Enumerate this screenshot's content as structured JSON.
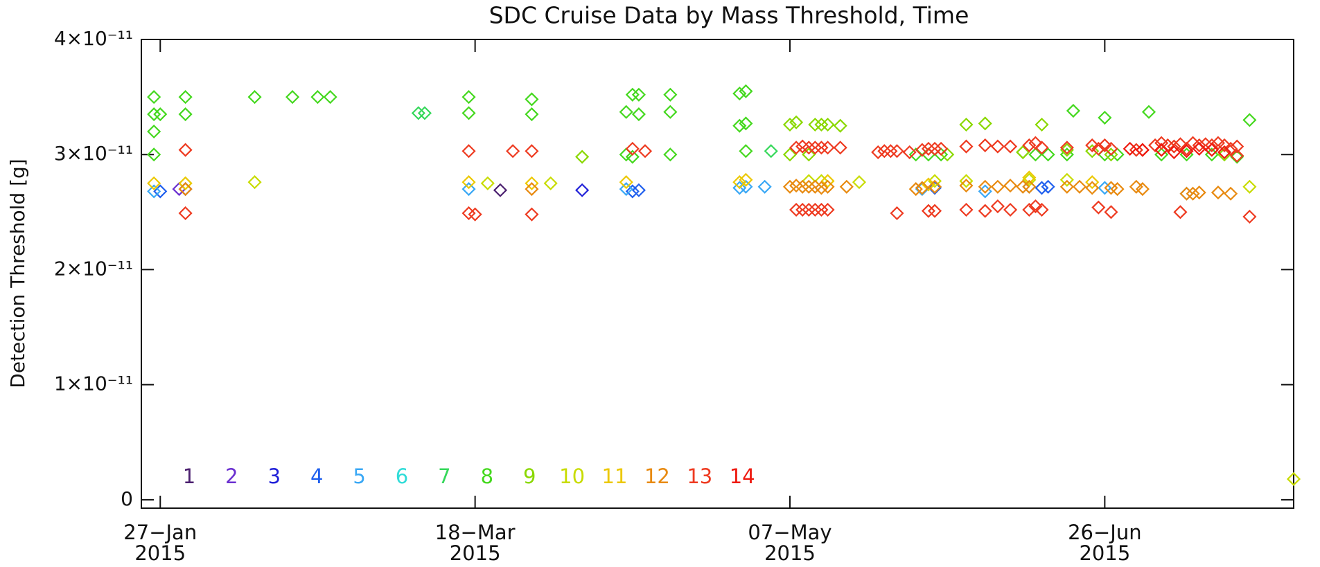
{
  "chart_data": {
    "type": "scatter",
    "title": "SDC Cruise Data by Mass Threshold, Time",
    "ylabel": "Detection Threshold [g]",
    "xlim": [
      "2015-01-24",
      "2015-07-26"
    ],
    "xticks": [
      {
        "value": "2015-01-27",
        "label": "27−Jan\n2015"
      },
      {
        "value": "2015-03-18",
        "label": "18−Mar\n2015"
      },
      {
        "value": "2015-05-07",
        "label": "07−May\n2015"
      },
      {
        "value": "2015-06-26",
        "label": "26−Jun\n2015"
      }
    ],
    "ylim": [
      -7.3e-13,
      4e-11
    ],
    "yticks": [
      0,
      {
        "value": 1e-11,
        "label": "1×10⁻¹¹"
      },
      {
        "value": 2e-11,
        "label": "2×10⁻¹¹"
      },
      {
        "value": 3e-11,
        "label": "3×10⁻¹¹"
      },
      {
        "value": 4e-11,
        "label": "4×10⁻¹¹"
      }
    ],
    "marker": "diamond",
    "series": [
      {
        "name": "1",
        "color": "#4b1f6f",
        "x": [
          "2015-03-22"
        ],
        "values": [
          2.69e-11
        ]
      },
      {
        "name": "2",
        "color": "#6a2fd0",
        "x": [
          "2015-01-30"
        ],
        "values": [
          2.7e-11
        ]
      },
      {
        "name": "3",
        "color": "#2020d8",
        "x": [
          "2015-01-31",
          "2015-04-04"
        ],
        "values": [
          2.7e-11,
          2.69e-11
        ]
      },
      {
        "name": "4",
        "color": "#1f5fee",
        "x": [
          "2015-01-27",
          "2015-04-12",
          "2015-04-13",
          "2015-05-30",
          "2015-06-16",
          "2015-06-17"
        ],
        "values": [
          2.68e-11,
          2.68e-11,
          2.69e-11,
          2.71e-11,
          2.71e-11,
          2.72e-11
        ]
      },
      {
        "name": "5",
        "color": "#3aa8f5",
        "x": [
          "2015-01-26",
          "2015-03-17",
          "2015-04-11",
          "2015-04-29",
          "2015-04-30",
          "2015-05-03",
          "2015-05-28",
          "2015-06-07",
          "2015-06-14",
          "2015-06-26",
          "2015-07-09"
        ],
        "values": [
          2.68e-11,
          2.7e-11,
          2.7e-11,
          2.71e-11,
          2.72e-11,
          2.72e-11,
          2.7e-11,
          2.68e-11,
          2.72e-11,
          2.71e-11,
          2.66e-11
        ]
      },
      {
        "name": "6",
        "color": "#30dcd8",
        "x": [],
        "values": []
      },
      {
        "name": "7",
        "color": "#35d85a",
        "x": [
          "2015-03-09",
          "2015-03-10",
          "2015-05-04"
        ],
        "values": [
          3.36e-11,
          3.36e-11,
          3.03e-11
        ]
      },
      {
        "name": "8",
        "color": "#44d81e",
        "x": [
          "2015-01-26",
          "2015-01-26",
          "2015-01-26",
          "2015-01-26",
          "2015-01-27",
          "2015-01-31",
          "2015-01-31",
          "2015-02-11",
          "2015-02-17",
          "2015-02-21",
          "2015-02-23",
          "2015-03-17",
          "2015-03-17",
          "2015-03-27",
          "2015-03-27",
          "2015-04-11",
          "2015-04-11",
          "2015-04-12",
          "2015-04-12",
          "2015-04-13",
          "2015-04-13",
          "2015-04-18",
          "2015-04-18",
          "2015-04-18",
          "2015-04-29",
          "2015-04-29",
          "2015-04-30",
          "2015-04-30",
          "2015-04-30",
          "2015-06-21",
          "2015-06-26",
          "2015-07-03",
          "2015-07-19",
          "2015-05-27",
          "2015-05-29",
          "2015-05-31",
          "2015-06-13",
          "2015-06-15",
          "2015-06-17",
          "2015-06-20",
          "2015-06-26",
          "2015-06-28",
          "2015-07-05",
          "2015-07-09",
          "2015-07-13",
          "2015-07-17"
        ],
        "values": [
          3.5e-11,
          3.35e-11,
          3.2e-11,
          3e-11,
          3.35e-11,
          3.5e-11,
          3.35e-11,
          3.5e-11,
          3.5e-11,
          3.5e-11,
          3.5e-11,
          3.5e-11,
          3.36e-11,
          3.48e-11,
          3.35e-11,
          3.37e-11,
          3e-11,
          3.52e-11,
          2.98e-11,
          3.52e-11,
          3.35e-11,
          3.52e-11,
          3.37e-11,
          3e-11,
          3.53e-11,
          3.25e-11,
          3.55e-11,
          3.27e-11,
          3.03e-11,
          3.38e-11,
          3.32e-11,
          3.37e-11,
          3.3e-11,
          3e-11,
          3e-11,
          3e-11,
          3.02e-11,
          3e-11,
          3e-11,
          3e-11,
          3e-11,
          3e-11,
          3e-11,
          3e-11,
          3e-11,
          2.98e-11
        ]
      },
      {
        "name": "9",
        "color": "#8ad800",
        "x": [
          "2015-04-04",
          "2015-05-07",
          "2015-05-08",
          "2015-05-07",
          "2015-05-11",
          "2015-05-12",
          "2015-05-13",
          "2015-05-15",
          "2015-05-10",
          "2015-06-04",
          "2015-06-07",
          "2015-06-16",
          "2015-06-20",
          "2015-06-24",
          "2015-06-27",
          "2015-06-01",
          "2015-06-13",
          "2015-07-15"
        ],
        "values": [
          2.98e-11,
          3.26e-11,
          3.28e-11,
          3e-11,
          3.26e-11,
          3.26e-11,
          3.26e-11,
          3.25e-11,
          3e-11,
          3.26e-11,
          3.27e-11,
          3.26e-11,
          3.04e-11,
          3.03e-11,
          3e-11,
          3e-11,
          3.02e-11,
          3e-11
        ]
      },
      {
        "name": "10",
        "color": "#c8dc00",
        "x": [
          "2015-01-31",
          "2015-02-11",
          "2015-03-20",
          "2015-03-30",
          "2015-05-10",
          "2015-05-12",
          "2015-05-18",
          "2015-05-30",
          "2015-06-04",
          "2015-06-14",
          "2015-06-20",
          "2015-07-19",
          "2015-07-26"
        ],
        "values": [
          2.75e-11,
          2.76e-11,
          2.75e-11,
          2.75e-11,
          2.77e-11,
          2.77e-11,
          2.76e-11,
          2.77e-11,
          2.77e-11,
          2.78e-11,
          2.78e-11,
          2.72e-11,
          1.8e-12
        ]
      },
      {
        "name": "11",
        "color": "#ecc800",
        "x": [
          "2015-01-26",
          "2015-01-31",
          "2015-03-17",
          "2015-03-27",
          "2015-04-11",
          "2015-04-29",
          "2015-04-30",
          "2015-05-13",
          "2015-05-29",
          "2015-06-14",
          "2015-06-24"
        ],
        "values": [
          2.75e-11,
          2.75e-11,
          2.76e-11,
          2.75e-11,
          2.76e-11,
          2.76e-11,
          2.78e-11,
          2.77e-11,
          2.74e-11,
          2.8e-11,
          2.76e-11
        ]
      },
      {
        "name": "12",
        "color": "#e88a10",
        "x": [
          "2015-01-31",
          "2015-03-27",
          "2015-05-07",
          "2015-05-08",
          "2015-05-09",
          "2015-05-10",
          "2015-05-11",
          "2015-05-12",
          "2015-05-13",
          "2015-05-16",
          "2015-05-27",
          "2015-05-28",
          "2015-05-30",
          "2015-06-04",
          "2015-06-07",
          "2015-06-09",
          "2015-06-11",
          "2015-06-13",
          "2015-06-14",
          "2015-06-20",
          "2015-06-22",
          "2015-06-24",
          "2015-06-27",
          "2015-06-28",
          "2015-07-01",
          "2015-07-02",
          "2015-07-09",
          "2015-07-10",
          "2015-07-11",
          "2015-07-14",
          "2015-07-16"
        ],
        "values": [
          2.7e-11,
          2.7e-11,
          2.72e-11,
          2.73e-11,
          2.72e-11,
          2.72e-11,
          2.72e-11,
          2.71e-11,
          2.72e-11,
          2.72e-11,
          2.7e-11,
          2.71e-11,
          2.72e-11,
          2.73e-11,
          2.72e-11,
          2.72e-11,
          2.73e-11,
          2.72e-11,
          2.72e-11,
          2.72e-11,
          2.72e-11,
          2.71e-11,
          2.71e-11,
          2.7e-11,
          2.72e-11,
          2.7e-11,
          2.66e-11,
          2.66e-11,
          2.67e-11,
          2.67e-11,
          2.66e-11
        ]
      },
      {
        "name": "13",
        "color": "#ee3a20",
        "x": [
          "2015-01-31",
          "2015-01-31",
          "2015-03-17",
          "2015-03-17",
          "2015-03-18",
          "2015-03-24",
          "2015-03-27",
          "2015-03-27",
          "2015-04-12",
          "2015-04-14",
          "2015-05-08",
          "2015-05-08",
          "2015-05-09",
          "2015-05-09",
          "2015-05-10",
          "2015-05-10",
          "2015-05-11",
          "2015-05-11",
          "2015-05-12",
          "2015-05-12",
          "2015-05-13",
          "2015-05-13",
          "2015-05-15",
          "2015-05-21",
          "2015-05-22",
          "2015-05-23",
          "2015-05-24",
          "2015-05-24",
          "2015-05-26",
          "2015-05-28",
          "2015-05-29",
          "2015-05-29",
          "2015-05-30",
          "2015-05-30",
          "2015-05-31",
          "2015-06-04",
          "2015-06-04",
          "2015-06-07",
          "2015-06-07",
          "2015-06-09",
          "2015-06-09",
          "2015-06-11",
          "2015-06-11",
          "2015-06-14",
          "2015-06-14",
          "2015-06-15",
          "2015-06-15",
          "2015-06-16",
          "2015-06-16",
          "2015-06-20",
          "2015-06-24",
          "2015-06-25",
          "2015-06-25",
          "2015-06-26",
          "2015-06-27",
          "2015-06-27",
          "2015-07-01",
          "2015-07-02",
          "2015-07-04",
          "2015-07-05",
          "2015-07-06",
          "2015-07-07",
          "2015-07-08",
          "2015-07-08",
          "2015-07-09",
          "2015-07-10",
          "2015-07-11",
          "2015-07-12",
          "2015-07-13",
          "2015-07-14",
          "2015-07-15",
          "2015-07-16",
          "2015-07-17",
          "2015-07-17",
          "2015-07-19"
        ],
        "values": [
          3.04e-11,
          2.49e-11,
          3.03e-11,
          2.49e-11,
          2.48e-11,
          3.03e-11,
          3.03e-11,
          2.48e-11,
          3.05e-11,
          3.03e-11,
          3.06e-11,
          2.52e-11,
          3.07e-11,
          2.52e-11,
          3.06e-11,
          2.52e-11,
          3.06e-11,
          2.52e-11,
          3.06e-11,
          2.52e-11,
          3.06e-11,
          2.52e-11,
          3.06e-11,
          3.02e-11,
          3.03e-11,
          3.03e-11,
          3.03e-11,
          2.49e-11,
          3.02e-11,
          3.04e-11,
          3.05e-11,
          2.51e-11,
          3.05e-11,
          2.51e-11,
          3.05e-11,
          3.07e-11,
          2.52e-11,
          3.08e-11,
          2.51e-11,
          3.07e-11,
          2.55e-11,
          3.07e-11,
          2.52e-11,
          3.08e-11,
          2.52e-11,
          3.1e-11,
          2.55e-11,
          3.06e-11,
          2.52e-11,
          3.06e-11,
          3.08e-11,
          3.05e-11,
          2.54e-11,
          3.08e-11,
          3.05e-11,
          2.5e-11,
          3.04e-11,
          3.04e-11,
          3.08e-11,
          3.1e-11,
          3.08e-11,
          3.07e-11,
          3.09e-11,
          2.5e-11,
          3.05e-11,
          3.1e-11,
          3.08e-11,
          3.09e-11,
          3.08e-11,
          3.1e-11,
          3.08e-11,
          3.05e-11,
          3.07e-11,
          2.99e-11,
          2.46e-11
        ]
      },
      {
        "name": "14",
        "color": "#ee1a10",
        "x": [
          "2015-06-30",
          "2015-07-02",
          "2015-07-05",
          "2015-07-07",
          "2015-07-09",
          "2015-07-11",
          "2015-07-13",
          "2015-07-15"
        ],
        "values": [
          3.05e-11,
          3.04e-11,
          3.04e-11,
          3.02e-11,
          3.03e-11,
          3.05e-11,
          3.04e-11,
          3.02e-11
        ]
      }
    ]
  }
}
